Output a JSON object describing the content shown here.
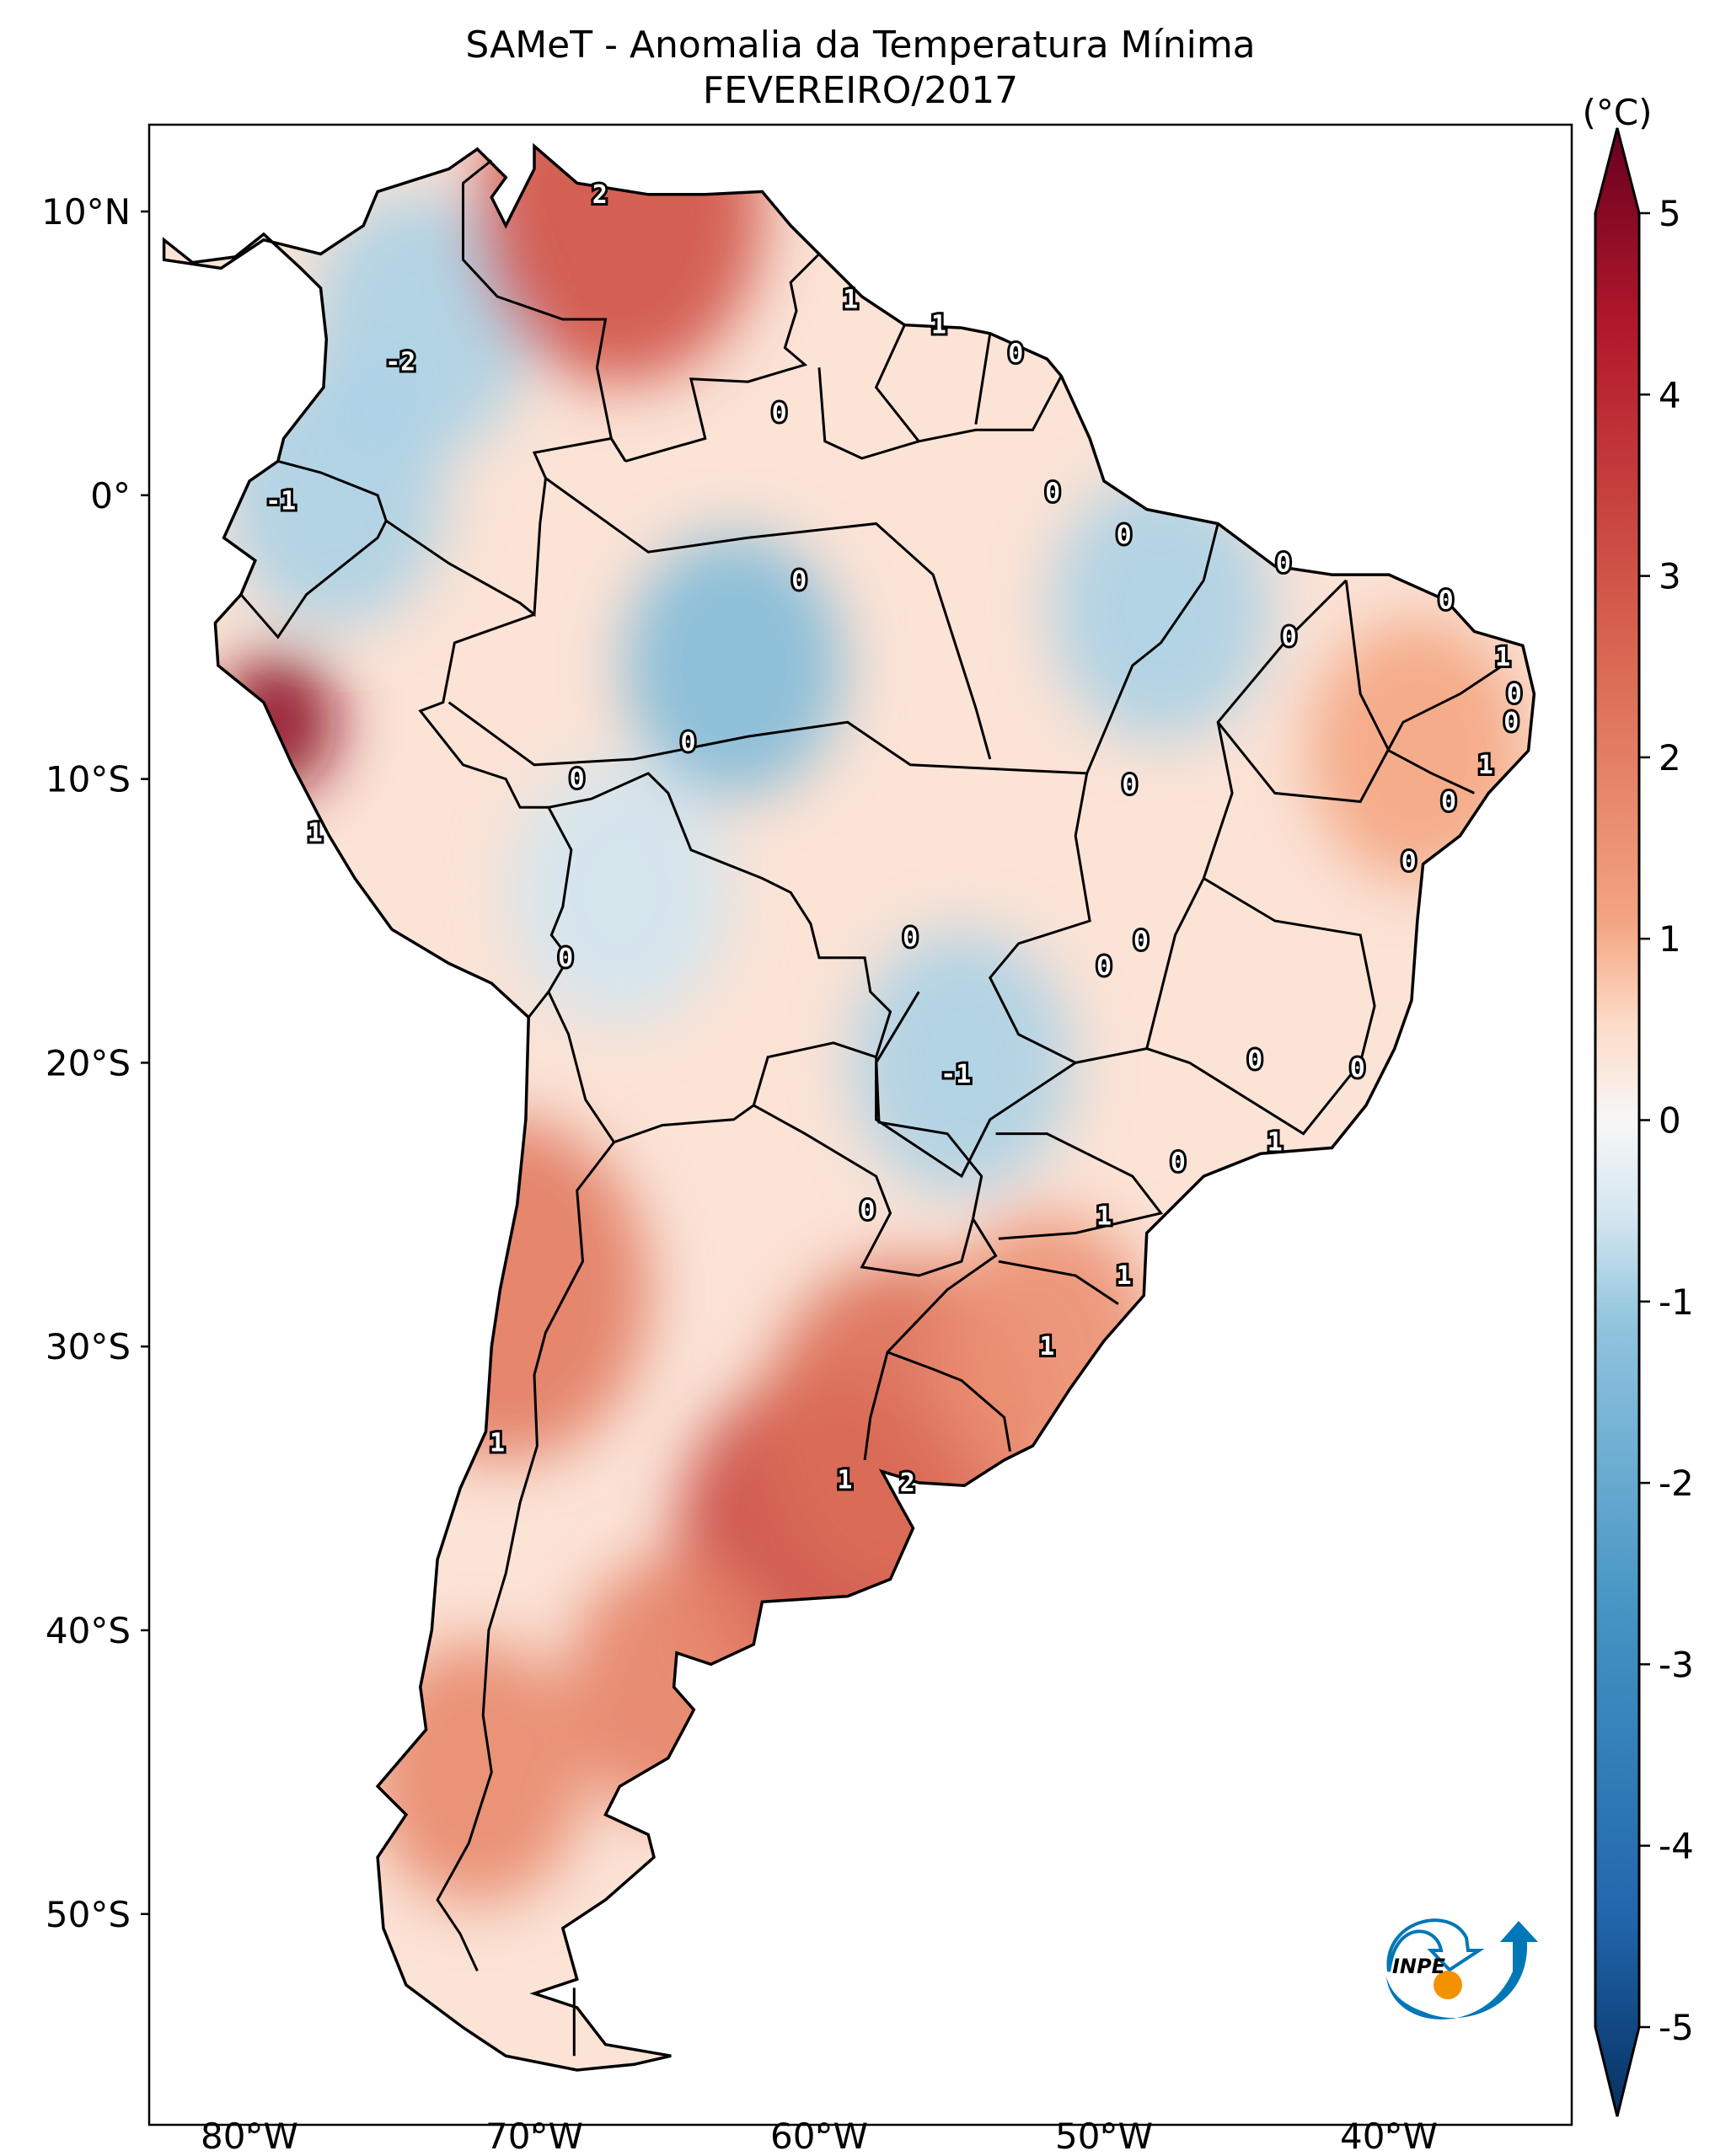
{
  "title": {
    "line1": "SAMeT - Anomalia da Temperatura Mínima",
    "line2": "FEVEREIRO/2017"
  },
  "axes": {
    "lat_ticks": [
      {
        "label": "10°N",
        "lat": 10
      },
      {
        "label": "0°",
        "lat": 0
      },
      {
        "label": "10°S",
        "lat": -10
      },
      {
        "label": "20°S",
        "lat": -20
      },
      {
        "label": "30°S",
        "lat": -30
      },
      {
        "label": "40°S",
        "lat": -40
      },
      {
        "label": "50°S",
        "lat": -50
      }
    ],
    "lon_ticks": [
      {
        "label": "80°W",
        "lon": -80
      },
      {
        "label": "70°W",
        "lon": -70
      },
      {
        "label": "60°W",
        "lon": -60
      },
      {
        "label": "50°W",
        "lon": -50
      },
      {
        "label": "40°W",
        "lon": -40
      }
    ],
    "lon_range": [
      -83,
      -34
    ],
    "lat_range": [
      -56.5,
      12.9
    ]
  },
  "colorbar": {
    "unit": "(°C)",
    "ticks": [
      "5",
      "4",
      "3",
      "2",
      "1",
      "0",
      "-1",
      "-2",
      "-3",
      "-4",
      "-5"
    ],
    "range": [
      -5,
      5
    ],
    "colors": {
      "min": "#053061",
      "low": "#4393c3",
      "mid": "#f7f7f7",
      "high": "#d6604d",
      "max": "#67001f"
    }
  },
  "contour_labels": [
    {
      "text": "2",
      "lon": -67.7,
      "lat": 10.6
    },
    {
      "text": "-2",
      "lon": -74.7,
      "lat": 4.7
    },
    {
      "text": "1",
      "lon": -58.9,
      "lat": 6.9
    },
    {
      "text": "1",
      "lon": -55.8,
      "lat": 6.0
    },
    {
      "text": "0",
      "lon": -53.1,
      "lat": 5.0
    },
    {
      "text": "0",
      "lon": -61.4,
      "lat": 2.9
    },
    {
      "text": "-1",
      "lon": -78.9,
      "lat": -0.2
    },
    {
      "text": "0",
      "lon": -51.8,
      "lat": 0.1
    },
    {
      "text": "0",
      "lon": -49.3,
      "lat": -1.4
    },
    {
      "text": "0",
      "lon": -60.7,
      "lat": -3.0
    },
    {
      "text": "0",
      "lon": -43.7,
      "lat": -2.4
    },
    {
      "text": "0",
      "lon": -38.0,
      "lat": -3.7
    },
    {
      "text": "0",
      "lon": -43.5,
      "lat": -5.0
    },
    {
      "text": "1",
      "lon": -36.0,
      "lat": -5.7
    },
    {
      "text": "0",
      "lon": -35.6,
      "lat": -7.0
    },
    {
      "text": "0",
      "lon": -35.7,
      "lat": -8.0
    },
    {
      "text": "0",
      "lon": -64.6,
      "lat": -8.7
    },
    {
      "text": "1",
      "lon": -36.6,
      "lat": -9.5
    },
    {
      "text": "0",
      "lon": -68.5,
      "lat": -10.0
    },
    {
      "text": "0",
      "lon": -49.1,
      "lat": -10.2
    },
    {
      "text": "0",
      "lon": -37.9,
      "lat": -10.8
    },
    {
      "text": "1",
      "lon": -77.7,
      "lat": -11.9
    },
    {
      "text": "0",
      "lon": -39.3,
      "lat": -12.9
    },
    {
      "text": "0",
      "lon": -56.8,
      "lat": -15.6
    },
    {
      "text": "0",
      "lon": -48.7,
      "lat": -15.7
    },
    {
      "text": "0",
      "lon": -68.9,
      "lat": -16.3
    },
    {
      "text": "0",
      "lon": -50.0,
      "lat": -16.6
    },
    {
      "text": "0",
      "lon": -44.7,
      "lat": -19.9
    },
    {
      "text": "-1",
      "lon": -55.2,
      "lat": -20.4
    },
    {
      "text": "0",
      "lon": -41.1,
      "lat": -20.2
    },
    {
      "text": "1",
      "lon": -44.0,
      "lat": -22.8
    },
    {
      "text": "0",
      "lon": -47.4,
      "lat": -23.5
    },
    {
      "text": "0",
      "lon": -58.3,
      "lat": -25.2
    },
    {
      "text": "1",
      "lon": -50.0,
      "lat": -25.4
    },
    {
      "text": "1",
      "lon": -49.3,
      "lat": -27.5
    },
    {
      "text": "1",
      "lon": -52.0,
      "lat": -30.0
    },
    {
      "text": "1",
      "lon": -71.3,
      "lat": -33.4
    },
    {
      "text": "1",
      "lon": -59.1,
      "lat": -34.7
    },
    {
      "text": "2",
      "lon": -56.9,
      "lat": -34.8
    }
  ],
  "anomaly_spots": [
    {
      "lon": -63,
      "lat": -6,
      "value": -1.2
    },
    {
      "lon": -48,
      "lat": -4,
      "value": -0.8
    },
    {
      "lon": -74,
      "lat": 6,
      "value": -0.8
    },
    {
      "lon": -77,
      "lat": 0,
      "value": -0.8
    },
    {
      "lon": -55,
      "lat": -20,
      "value": -0.8
    },
    {
      "lon": -67,
      "lat": -14,
      "value": -0.5
    },
    {
      "lon": -67,
      "lat": 10,
      "value": 2.2
    },
    {
      "lon": -79,
      "lat": -8,
      "value": 4.0
    },
    {
      "lon": -60,
      "lat": -37,
      "value": 2.3
    },
    {
      "lon": -65,
      "lat": -42,
      "value": 1.5
    },
    {
      "lon": -57,
      "lat": -33,
      "value": 1.8
    },
    {
      "lon": -71,
      "lat": -28,
      "value": 1.6
    },
    {
      "lon": -72,
      "lat": -45,
      "value": 1.4
    },
    {
      "lon": -39,
      "lat": -9,
      "value": 1.0
    },
    {
      "lon": -52,
      "lat": -30,
      "value": 1.3
    }
  ],
  "logo": {
    "text": "INPE"
  }
}
